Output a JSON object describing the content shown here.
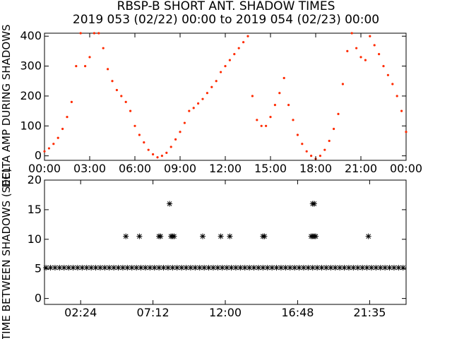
{
  "title": "RBSP-B SHORT ANT. SHADOW TIMES",
  "subtitle": "2019 053 (02/22) 00:00 to 2019 054 (02/23) 00:00",
  "colors": {
    "background": "#ffffff",
    "axes": "#000000",
    "top_series": "#ff2a00",
    "bottom_series": "#000000"
  },
  "chart_data": [
    {
      "type": "scatter",
      "xlabel": "",
      "ylabel": "DELTA AMP DURING SHADOWS",
      "x_ticks": [
        "00:00",
        "03:00",
        "06:00",
        "09:00",
        "12:00",
        "15:00",
        "18:00",
        "21:00",
        "00:00"
      ],
      "y_ticks": [
        "0",
        "100",
        "200",
        "300",
        "400"
      ],
      "xlim_hours": [
        0,
        24
      ],
      "ylim": [
        -15,
        410
      ],
      "grid": false,
      "series": [
        {
          "color": "#ff2a00",
          "marker": "dot",
          "x_hours": [
            0.0,
            0.3,
            0.6,
            0.9,
            1.2,
            1.5,
            1.8,
            2.1,
            2.4,
            2.7,
            3.0,
            3.3,
            3.6,
            3.9,
            4.2,
            4.5,
            4.8,
            5.1,
            5.4,
            5.7,
            6.0,
            6.3,
            6.6,
            6.9,
            7.2,
            7.5,
            7.8,
            8.1,
            8.4,
            8.7,
            9.0,
            9.3,
            9.6,
            9.9,
            10.2,
            10.5,
            10.8,
            11.1,
            11.4,
            11.7,
            12.0,
            12.3,
            12.6,
            12.9,
            13.2,
            13.5,
            13.8,
            14.1,
            14.4,
            14.7,
            15.0,
            15.3,
            15.6,
            15.9,
            16.2,
            16.5,
            16.8,
            17.1,
            17.4,
            17.7,
            18.0,
            18.3,
            18.6,
            18.9,
            19.2,
            19.5,
            19.8,
            20.1,
            20.4,
            20.7,
            21.0,
            21.3,
            21.6,
            21.9,
            22.2,
            22.5,
            22.8,
            23.1,
            23.4,
            23.7,
            24.0
          ],
          "values": [
            15,
            25,
            40,
            60,
            90,
            130,
            180,
            300,
            420,
            300,
            330,
            410,
            420,
            360,
            290,
            250,
            220,
            200,
            180,
            150,
            100,
            70,
            45,
            20,
            5,
            -5,
            0,
            10,
            30,
            55,
            80,
            110,
            150,
            160,
            175,
            190,
            210,
            230,
            250,
            280,
            300,
            320,
            340,
            360,
            380,
            400,
            200,
            120,
            100,
            100,
            130,
            170,
            210,
            260,
            170,
            120,
            70,
            40,
            15,
            0,
            -10,
            0,
            20,
            50,
            90,
            140,
            240,
            350,
            410,
            360,
            330,
            320,
            400,
            370,
            340,
            300,
            270,
            240,
            200,
            150,
            80
          ]
        }
      ]
    },
    {
      "type": "scatter",
      "xlabel": "",
      "ylabel": "TIME BETWEEN SHADOWS (SEC)",
      "x_ticks": [
        "02:24",
        "07:12",
        "12:00",
        "16:48",
        "21:35"
      ],
      "y_ticks": [
        "0",
        "5",
        "10",
        "15",
        "20"
      ],
      "xlim_hours": [
        0,
        24
      ],
      "ylim": [
        -1,
        20
      ],
      "grid": false,
      "series": [
        {
          "color": "#000000",
          "marker": "asterisk",
          "x_hours": [
            0.1,
            0.4,
            0.7,
            1.0,
            1.3,
            1.6,
            1.9,
            2.2,
            2.5,
            2.8,
            3.1,
            3.4,
            3.7,
            4.0,
            4.3,
            4.6,
            4.9,
            5.2,
            5.5,
            5.8,
            6.1,
            6.4,
            6.7,
            7.0,
            7.3,
            7.6,
            7.9,
            8.2,
            8.5,
            8.8,
            9.1,
            9.4,
            9.7,
            10.0,
            10.3,
            10.6,
            10.9,
            11.2,
            11.5,
            11.8,
            12.1,
            12.4,
            12.7,
            13.0,
            13.3,
            13.6,
            13.9,
            14.2,
            14.5,
            14.8,
            15.1,
            15.4,
            15.7,
            16.0,
            16.3,
            16.6,
            16.9,
            17.2,
            17.5,
            17.8,
            18.1,
            18.4,
            18.7,
            19.0,
            19.3,
            19.6,
            19.9,
            20.2,
            20.5,
            20.8,
            21.1,
            21.4,
            21.7,
            22.0,
            22.3,
            22.6,
            22.9,
            23.2,
            23.5,
            23.8,
            5.4,
            6.3,
            7.6,
            7.7,
            8.4,
            8.5,
            8.6,
            10.5,
            11.7,
            12.3,
            14.5,
            14.6,
            17.7,
            17.8,
            17.9,
            18.0,
            8.3,
            17.8,
            17.9,
            21.5
          ],
          "values": [
            5.2,
            5.2,
            5.2,
            5.2,
            5.2,
            5.2,
            5.2,
            5.2,
            5.2,
            5.2,
            5.2,
            5.2,
            5.2,
            5.2,
            5.2,
            5.2,
            5.2,
            5.2,
            5.2,
            5.2,
            5.2,
            5.2,
            5.2,
            5.2,
            5.2,
            5.2,
            5.2,
            5.2,
            5.2,
            5.2,
            5.2,
            5.2,
            5.2,
            5.2,
            5.2,
            5.2,
            5.2,
            5.2,
            5.2,
            5.2,
            5.2,
            5.2,
            5.2,
            5.2,
            5.2,
            5.2,
            5.2,
            5.2,
            5.2,
            5.2,
            5.2,
            5.2,
            5.2,
            5.2,
            5.2,
            5.2,
            5.2,
            5.2,
            5.2,
            5.2,
            5.2,
            5.2,
            5.2,
            5.2,
            5.2,
            5.2,
            5.2,
            5.2,
            5.2,
            5.2,
            5.2,
            5.2,
            5.2,
            5.2,
            5.2,
            5.2,
            5.2,
            5.2,
            5.2,
            5.2,
            10.5,
            10.5,
            10.5,
            10.5,
            10.5,
            10.5,
            10.5,
            10.5,
            10.5,
            10.5,
            10.5,
            10.5,
            10.5,
            10.5,
            10.5,
            10.5,
            16.0,
            16.0,
            16.0,
            10.5
          ]
        }
      ]
    }
  ]
}
